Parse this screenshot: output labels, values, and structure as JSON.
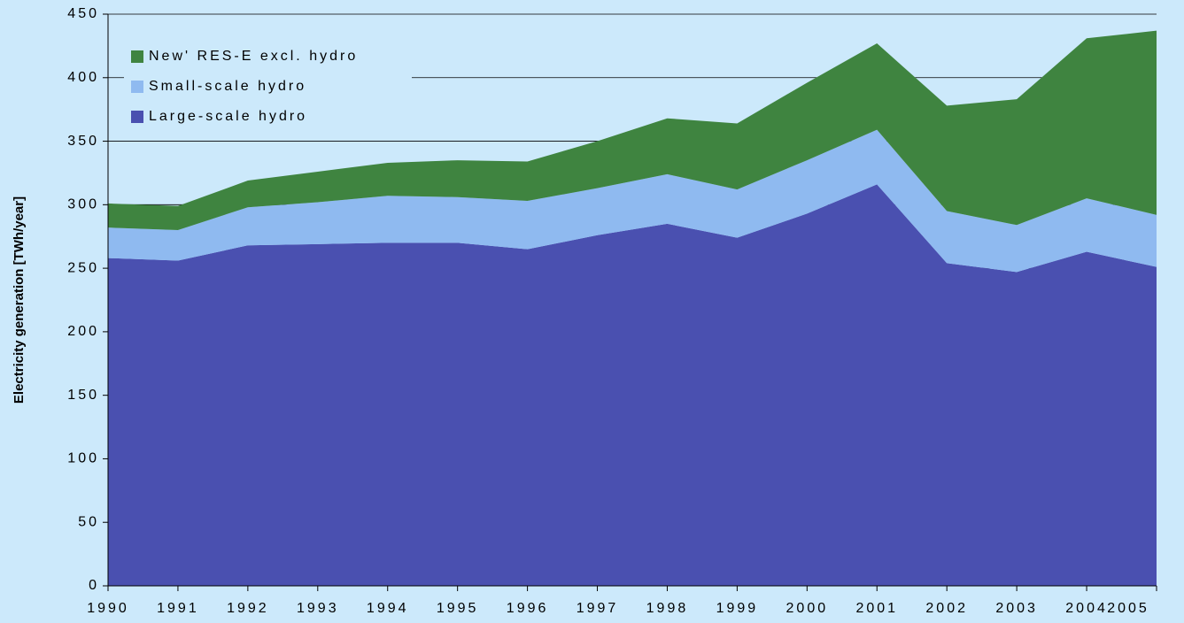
{
  "chart_data": {
    "type": "stacked_area",
    "y_label": "Electricity generation [TWh/year]",
    "categories": [
      "1990",
      "1991",
      "1992",
      "1993",
      "1994",
      "1995",
      "1996",
      "1997",
      "1998",
      "1999",
      "2000",
      "2001",
      "2002",
      "2003",
      "2004",
      "2005"
    ],
    "series": [
      {
        "name": "Large-scale hydro",
        "color": "#4a50b0",
        "values": [
          258,
          256,
          268,
          269,
          270,
          270,
          265,
          276,
          285,
          274,
          293,
          316,
          254,
          247,
          263,
          251
        ]
      },
      {
        "name": "Small-scale hydro",
        "color": "#8fbaf0",
        "values": [
          24,
          24,
          30,
          33,
          37,
          36,
          38,
          37,
          39,
          38,
          42,
          43,
          41,
          37,
          42,
          41
        ]
      },
      {
        "name": "New' RES-E excl. hydro",
        "color": "#3f8440",
        "values": [
          19,
          19,
          21,
          24,
          26,
          29,
          31,
          37,
          44,
          52,
          61,
          68,
          83,
          99,
          126,
          145
        ]
      }
    ],
    "ylim": [
      0,
      450
    ],
    "yticks": [
      0,
      50,
      100,
      150,
      200,
      250,
      300,
      350,
      400,
      450
    ],
    "grid": true
  }
}
